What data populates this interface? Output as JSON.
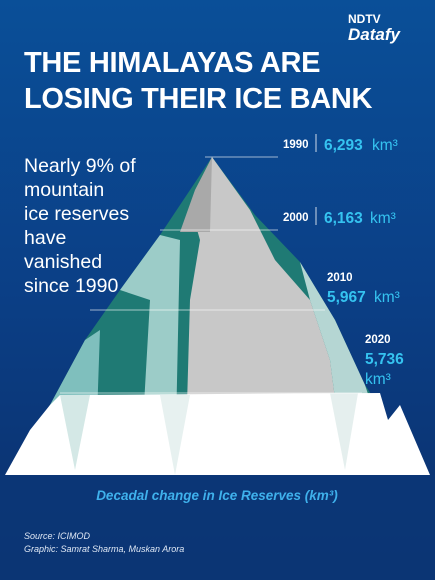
{
  "brand": {
    "top": "NDTV",
    "bottom": "Datafy"
  },
  "header": {
    "title_line1": "THE HIMALAYAS ARE",
    "title_line2": "LOSING THEIR ICE BANK"
  },
  "note": [
    "Nearly 9% of",
    "mountain",
    "ice reserves",
    "have",
    "vanished",
    "since 1990"
  ],
  "entries": [
    {
      "year": "1990",
      "value": "6,293",
      "unit": "km³"
    },
    {
      "year": "2000",
      "value": "6,163",
      "unit": "km³"
    },
    {
      "year": "2010",
      "value": "5,967",
      "unit": "km³"
    },
    {
      "year": "2020",
      "value": "5,736",
      "unit": "km³"
    }
  ],
  "caption": "Decadal change in Ice Reserves (km³)",
  "footer": {
    "source": "Source: ICIMOD",
    "credit": "Graphic: Samrat Sharma, Muskan Arora"
  }
}
